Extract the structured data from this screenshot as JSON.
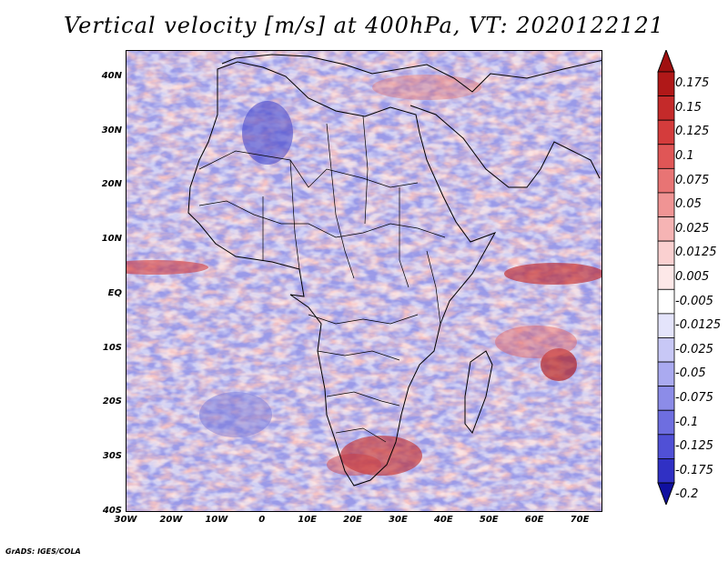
{
  "title": "Vertical velocity [m/s] at 400hPa, VT: 2020122121",
  "footer": "GrADS: IGES/COLA",
  "map": {
    "lon_range": [
      -30,
      75
    ],
    "lat_range": [
      -40,
      45
    ],
    "lat_ticks": [
      {
        "value": 40,
        "label": "40N"
      },
      {
        "value": 30,
        "label": "30N"
      },
      {
        "value": 20,
        "label": "20N"
      },
      {
        "value": 10,
        "label": "10N"
      },
      {
        "value": 0,
        "label": "EQ"
      },
      {
        "value": -10,
        "label": "10S"
      },
      {
        "value": -20,
        "label": "20S"
      },
      {
        "value": -30,
        "label": "30S"
      },
      {
        "value": -40,
        "label": "40S"
      }
    ],
    "lon_ticks": [
      {
        "value": -30,
        "label": "30W"
      },
      {
        "value": -20,
        "label": "20W"
      },
      {
        "value": -10,
        "label": "10W"
      },
      {
        "value": 0,
        "label": "0"
      },
      {
        "value": 10,
        "label": "10E"
      },
      {
        "value": 20,
        "label": "20E"
      },
      {
        "value": 30,
        "label": "30E"
      },
      {
        "value": 40,
        "label": "40E"
      },
      {
        "value": 50,
        "label": "50E"
      },
      {
        "value": 60,
        "label": "60E"
      },
      {
        "value": 70,
        "label": "70E"
      }
    ]
  },
  "colorbar": {
    "levels": [
      {
        "label": "0.175",
        "color": "#b01818"
      },
      {
        "label": "0.15",
        "color": "#c42a2a"
      },
      {
        "label": "0.125",
        "color": "#d43c3c"
      },
      {
        "label": "0.1",
        "color": "#e05656"
      },
      {
        "label": "0.075",
        "color": "#e87474"
      },
      {
        "label": "0.05",
        "color": "#f09494"
      },
      {
        "label": "0.025",
        "color": "#f6b4b4"
      },
      {
        "label": "0.0125",
        "color": "#fad0d0"
      },
      {
        "label": "0.005",
        "color": "#fde8e8"
      },
      {
        "label": "-0.005",
        "color": "#ffffff"
      },
      {
        "label": "-0.0125",
        "color": "#e4e4fb"
      },
      {
        "label": "-0.025",
        "color": "#c8c8f6"
      },
      {
        "label": "-0.05",
        "color": "#aaaaf0"
      },
      {
        "label": "-0.075",
        "color": "#8c8ce8"
      },
      {
        "label": "-0.1",
        "color": "#6e6ee0"
      },
      {
        "label": "-0.125",
        "color": "#5050d6"
      },
      {
        "label": "-0.175",
        "color": "#3030c4"
      },
      {
        "label": "-0.2",
        "color": "#1818aa"
      }
    ],
    "top_color": "#a01010",
    "bottom_color": "#1010a0"
  }
}
